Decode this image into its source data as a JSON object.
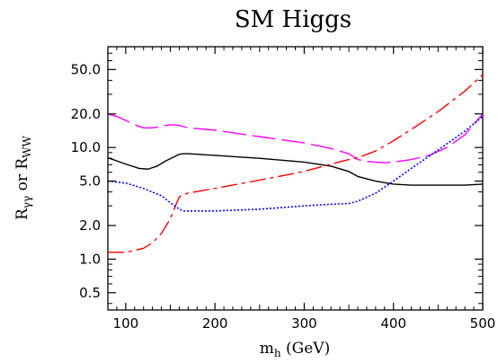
{
  "chart_data": {
    "type": "line",
    "title": "SM Higgs",
    "xlabel": "m",
    "xlabel_sub": "h",
    "xlabel_suffix": " (GeV)",
    "ylabel_parts": {
      "r1": "R",
      "r1_sub": "γγ",
      "or": " or ",
      "r2": "R",
      "r2_sub": "WW"
    },
    "xlim": [
      80,
      500
    ],
    "ylim": [
      0.35,
      80
    ],
    "yscale": "log",
    "grid": false,
    "x_ticks": [
      100,
      200,
      300,
      400,
      500
    ],
    "x_tick_labels": [
      "100",
      "200",
      "300",
      "400",
      "500"
    ],
    "y_ticks": [
      0.5,
      1.0,
      2.0,
      5.0,
      10.0,
      20.0,
      50.0
    ],
    "y_tick_labels": [
      "0.5",
      "1.0",
      "2.0",
      "5.0",
      "10.0",
      "20.0",
      "50.0"
    ],
    "series": [
      {
        "style": "solid",
        "color": "#000000",
        "x": [
          80,
          100,
          115,
          125,
          135,
          145,
          155,
          160,
          165,
          170,
          200,
          250,
          300,
          330,
          350,
          360,
          380,
          400,
          420,
          450,
          480,
          500
        ],
        "y": [
          8.1,
          7.1,
          6.5,
          6.4,
          6.8,
          7.6,
          8.3,
          8.7,
          8.8,
          8.8,
          8.5,
          8.0,
          7.4,
          6.8,
          6.1,
          5.5,
          5.0,
          4.7,
          4.6,
          4.6,
          4.6,
          4.7
        ]
      },
      {
        "style": "long-dash",
        "color": "#ff00ff",
        "x": [
          80,
          90,
          100,
          110,
          120,
          130,
          140,
          150,
          160,
          170,
          200,
          250,
          300,
          330,
          350,
          360,
          370,
          380,
          390,
          400,
          420,
          440,
          460,
          480,
          500
        ],
        "y": [
          20,
          19,
          17.5,
          16,
          15,
          15,
          15.5,
          16,
          15.8,
          15,
          14.3,
          12.5,
          11,
          9.8,
          8.8,
          7.8,
          7.5,
          7.4,
          7.3,
          7.4,
          7.8,
          8.5,
          10,
          13,
          20
        ]
      },
      {
        "style": "dash-dot",
        "color": "#ff0000",
        "x": [
          80,
          100,
          120,
          130,
          140,
          150,
          155,
          160,
          165,
          170,
          200,
          250,
          300,
          330,
          350,
          360,
          380,
          400,
          420,
          450,
          480,
          500
        ],
        "y": [
          1.15,
          1.15,
          1.25,
          1.4,
          1.7,
          2.3,
          2.9,
          3.6,
          3.8,
          3.9,
          4.3,
          5.1,
          6.1,
          7.1,
          7.8,
          8.1,
          9.3,
          11.5,
          14.5,
          21,
          32,
          45
        ]
      },
      {
        "style": "dotted",
        "color": "#0000ff",
        "x": [
          80,
          100,
          120,
          140,
          150,
          160,
          165,
          170,
          200,
          250,
          300,
          330,
          350,
          360,
          380,
          400,
          420,
          450,
          480,
          500
        ],
        "y": [
          5.0,
          4.8,
          4.3,
          3.7,
          3.2,
          2.8,
          2.7,
          2.7,
          2.7,
          2.8,
          3.0,
          3.1,
          3.15,
          3.3,
          3.9,
          5.0,
          6.5,
          9.5,
          14,
          19
        ]
      }
    ]
  }
}
